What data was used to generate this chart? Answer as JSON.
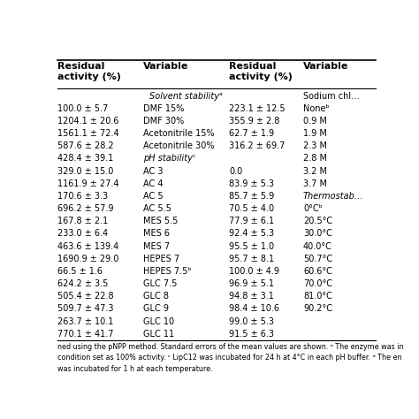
{
  "col_headers": [
    "Residual\nactivity (%)",
    "Variable",
    "Residual\nactivity (%)",
    "Variable"
  ],
  "rows": [
    [
      "",
      "Solvent stabilityᵃ",
      "",
      "Sodium chl…"
    ],
    [
      "100.0 ± 5.7",
      "DMF 15%",
      "223.1 ± 12.5",
      "Noneᵇ"
    ],
    [
      "1204.1 ± 20.6",
      "DMF 30%",
      "355.9 ± 2.8",
      "0.9 M"
    ],
    [
      "1561.1 ± 72.4",
      "Acetonitrile 15%",
      "62.7 ± 1.9",
      "1.9 M"
    ],
    [
      "587.6 ± 28.2",
      "Acetonitrile 30%",
      "316.2 ± 69.7",
      "2.3 M"
    ],
    [
      "428.4 ± 39.1",
      "pH stabilityᶜ",
      "",
      "2.8 M"
    ],
    [
      "329.0 ± 15.0",
      "AC 3",
      "0.0",
      "3.2 M"
    ],
    [
      "1161.9 ± 27.4",
      "AC 4",
      "83.9 ± 5.3",
      "3.7 M"
    ],
    [
      "170.6 ± 3.3",
      "AC 5",
      "85.7 ± 5.9",
      "Thermostab…"
    ],
    [
      "696.2 ± 57.9",
      "AC 5.5",
      "70.5 ± 4.0",
      "0°Cᵇ"
    ],
    [
      "167.8 ± 2.1",
      "MES 5.5",
      "77.9 ± 6.1",
      "20.5°C"
    ],
    [
      "233.0 ± 6.4",
      "MES 6",
      "92.4 ± 5.3",
      "30.0°C"
    ],
    [
      "463.6 ± 139.4",
      "MES 7",
      "95.5 ± 1.0",
      "40.0°C"
    ],
    [
      "1690.9 ± 29.0",
      "HEPES 7",
      "95.7 ± 8.1",
      "50.7°C"
    ],
    [
      "66.5 ± 1.6",
      "HEPES 7.5ᵇ",
      "100.0 ± 4.9",
      "60.6°C"
    ],
    [
      "624.2 ± 3.5",
      "GLC 7.5",
      "96.9 ± 5.1",
      "70.0°C"
    ],
    [
      "505.4 ± 22.8",
      "GLC 8",
      "94.8 ± 3.1",
      "81.0°C"
    ],
    [
      "509.7 ± 47.3",
      "GLC 9",
      "98.4 ± 10.6",
      "90.2°C"
    ],
    [
      "263.7 ± 10.1",
      "GLC 10",
      "99.0 ± 5.3",
      ""
    ],
    [
      "770.1 ± 41.7",
      "GLC 11",
      "91.5 ± 6.3",
      ""
    ]
  ],
  "footnote": "ned using the pNPP method. Standard errors of the mean values are shown. ᵃ The enzyme was in\ncondition set as 100% activity. ᶜ LipC12 was incubated for 24 h at 4°C in each pH buffer. ᵈ The en\nwas incubated for 1 h at each temperature.",
  "bg_color": "#ffffff",
  "text_color": "#000000",
  "line_color": "#000000",
  "font_size": 7.0,
  "header_font_size": 8.0
}
